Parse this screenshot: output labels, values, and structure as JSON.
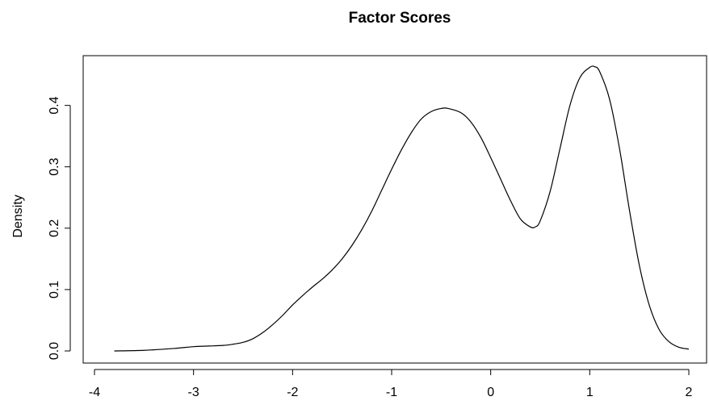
{
  "chart_data": {
    "type": "line",
    "title": "Factor Scores",
    "xlabel": "",
    "ylabel": "Density",
    "xlim": [
      -4,
      2
    ],
    "ylim": [
      0,
      0.46
    ],
    "x_ticks": [
      "-4",
      "-3",
      "-2",
      "-1",
      "0",
      "1",
      "2"
    ],
    "y_ticks": [
      "0.0",
      "0.1",
      "0.2",
      "0.3",
      "0.4"
    ],
    "grid": false,
    "series": [
      {
        "color": "#000000",
        "x": [
          -3.8,
          -3.5,
          -3.2,
          -3.0,
          -2.85,
          -2.7,
          -2.6,
          -2.5,
          -2.4,
          -2.3,
          -2.2,
          -2.1,
          -2.0,
          -1.9,
          -1.8,
          -1.7,
          -1.6,
          -1.5,
          -1.4,
          -1.3,
          -1.2,
          -1.1,
          -1.0,
          -0.9,
          -0.8,
          -0.7,
          -0.6,
          -0.5,
          -0.43,
          -0.3,
          -0.2,
          -0.1,
          0.0,
          0.1,
          0.2,
          0.3,
          0.4,
          0.45,
          0.5,
          0.6,
          0.7,
          0.8,
          0.9,
          1.0,
          1.05,
          1.1,
          1.2,
          1.3,
          1.4,
          1.5,
          1.6,
          1.7,
          1.8,
          1.9,
          2.0
        ],
        "y": [
          0.0,
          0.001,
          0.004,
          0.007,
          0.008,
          0.009,
          0.011,
          0.014,
          0.02,
          0.03,
          0.043,
          0.058,
          0.075,
          0.09,
          0.104,
          0.117,
          0.132,
          0.15,
          0.172,
          0.198,
          0.228,
          0.262,
          0.296,
          0.328,
          0.356,
          0.378,
          0.39,
          0.395,
          0.395,
          0.388,
          0.373,
          0.348,
          0.315,
          0.28,
          0.245,
          0.215,
          0.202,
          0.202,
          0.212,
          0.26,
          0.33,
          0.4,
          0.445,
          0.462,
          0.463,
          0.455,
          0.41,
          0.33,
          0.23,
          0.14,
          0.075,
          0.035,
          0.015,
          0.006,
          0.003
        ]
      }
    ]
  }
}
